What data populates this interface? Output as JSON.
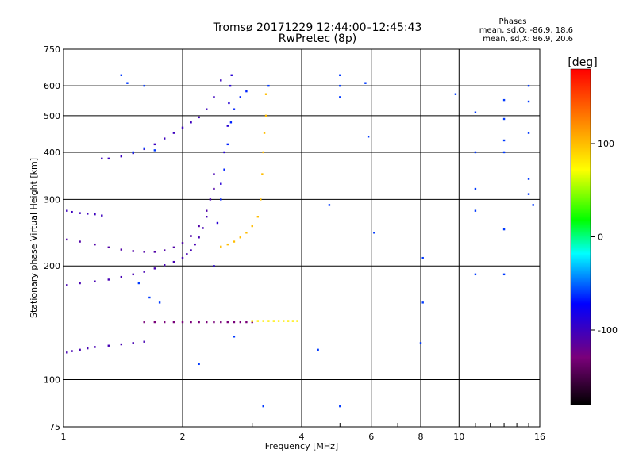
{
  "title": "Tromsø 20171229 12:44:00–12:45:43",
  "subtitle": "RwPretec (8p)",
  "stats": {
    "heading": "Phases",
    "o_line": "mean, sd,O: -86.9, 18.6",
    "x_line": "mean, sd,X:  86.9, 20.6"
  },
  "chart_data": {
    "type": "scatter",
    "xlabel": "Frequency [MHz]",
    "ylabel": "Stationary phase Virtual Height [km]",
    "x_scale": "log",
    "y_scale": "log",
    "xlim": [
      1,
      16
    ],
    "ylim": [
      75,
      750
    ],
    "grid": true,
    "x_ticks": [
      1,
      2,
      4,
      6,
      8,
      10,
      16
    ],
    "x_tick_labels": [
      "1",
      "2",
      "4",
      "6",
      "8",
      "10",
      "16"
    ],
    "y_ticks": [
      75,
      100,
      200,
      300,
      400,
      500,
      600,
      750
    ],
    "y_tick_labels": [
      "75",
      "100",
      "200",
      "300",
      "400",
      "500",
      "600",
      "750"
    ],
    "colorbar": {
      "label": "[deg]",
      "range": [
        -180,
        180
      ],
      "ticks": [
        100,
        0,
        -100
      ],
      "tick_labels": [
        "100",
        "0",
        "-100"
      ]
    },
    "series": [
      {
        "x": [
          1.02,
          1.1,
          1.2,
          1.3,
          1.4,
          1.5,
          1.6,
          1.7,
          1.8,
          1.9,
          2.0,
          2.05,
          2.1,
          2.15,
          2.2,
          2.25,
          2.3,
          2.35,
          2.4
        ],
        "y": [
          178,
          180,
          182,
          184,
          187,
          190,
          193,
          197,
          201,
          205,
          210,
          215,
          220,
          228,
          238,
          252,
          270,
          300,
          350
        ],
        "phase": -105
      },
      {
        "x": [
          1.02,
          1.1,
          1.2,
          1.3,
          1.4,
          1.5,
          1.6,
          1.7,
          1.8,
          1.9,
          2.0,
          2.1,
          2.2,
          2.3,
          2.4
        ],
        "y": [
          235,
          232,
          228,
          224,
          221,
          219,
          218,
          218,
          220,
          224,
          230,
          240,
          255,
          280,
          320
        ],
        "phase": -110
      },
      {
        "x": [
          1.02,
          1.05,
          1.1,
          1.15,
          1.2,
          1.25
        ],
        "y": [
          280,
          278,
          276,
          275,
          274,
          272
        ],
        "phase": -100
      },
      {
        "x": [
          1.25,
          1.3,
          1.4,
          1.5,
          1.6,
          1.7,
          1.8,
          1.9,
          2.0,
          2.1,
          2.2,
          2.3,
          2.4,
          2.5
        ],
        "y": [
          385,
          385,
          390,
          398,
          408,
          420,
          435,
          450,
          465,
          480,
          495,
          520,
          560,
          620
        ],
        "phase": -100
      },
      {
        "x": [
          2.4,
          2.45,
          2.5,
          2.55,
          2.6,
          2.62,
          2.64,
          2.66
        ],
        "y": [
          200,
          260,
          330,
          400,
          470,
          540,
          600,
          640
        ],
        "phase": -90
      },
      {
        "x": [
          2.5,
          2.55,
          2.6,
          2.65,
          2.7,
          2.8,
          2.9
        ],
        "y": [
          300,
          360,
          420,
          480,
          520,
          560,
          580
        ],
        "phase": -65
      },
      {
        "x": [
          2.5,
          2.6,
          2.7,
          2.8,
          2.9,
          3.0,
          3.1,
          3.15,
          3.18,
          3.2,
          3.22,
          3.25,
          3.25
        ],
        "y": [
          225,
          228,
          232,
          238,
          245,
          255,
          270,
          300,
          350,
          400,
          450,
          500,
          570
        ],
        "phase": 100
      },
      {
        "x": [
          1.02,
          1.05,
          1.1,
          1.15,
          1.2,
          1.3,
          1.4,
          1.5,
          1.6
        ],
        "y": [
          118,
          119,
          120,
          121,
          122,
          123,
          124,
          125,
          126
        ],
        "phase": -105
      },
      {
        "x": [
          1.6,
          1.7,
          1.8,
          1.9,
          2.0,
          2.1,
          2.2,
          2.3,
          2.4,
          2.5,
          2.6,
          2.7,
          2.8,
          2.9,
          3.0
        ],
        "y": [
          142,
          142,
          142,
          142,
          142,
          142,
          142,
          142,
          142,
          142,
          142,
          142,
          142,
          142,
          142
        ],
        "phase": -130
      },
      {
        "x": [
          3.0,
          3.1,
          3.2,
          3.3,
          3.4,
          3.5,
          3.6,
          3.7,
          3.8,
          3.9
        ],
        "y": [
          143,
          143,
          143,
          143,
          143,
          143,
          143,
          143,
          143,
          143
        ],
        "phase": 80
      },
      {
        "x": [
          1.4,
          1.45,
          1.6,
          1.5,
          1.6,
          1.7,
          1.55,
          1.65,
          1.75,
          4.7,
          5.0,
          5.0,
          5.0,
          5.8,
          5.9,
          6.1,
          8.1,
          8.1,
          8.0,
          9.8,
          11.0,
          11.0,
          11.0,
          11.0,
          11.0,
          13.0,
          13.0,
          13.0,
          13.0,
          13.0,
          13.0,
          15.0,
          15.0,
          15.0,
          15.0,
          15.0,
          15.4,
          3.3,
          4.4,
          5.0,
          3.2,
          2.7,
          2.2
        ],
        "y": [
          640,
          610,
          600,
          400,
          410,
          405,
          180,
          165,
          160,
          290,
          640,
          600,
          560,
          610,
          440,
          245,
          210,
          160,
          125,
          570,
          510,
          400,
          320,
          280,
          190,
          550,
          490,
          430,
          400,
          250,
          190,
          600,
          545,
          450,
          340,
          310,
          290,
          600,
          120,
          85,
          85,
          130,
          110
        ],
        "phase": -60
      }
    ]
  }
}
